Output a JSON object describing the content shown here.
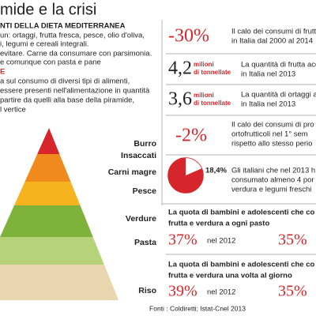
{
  "title": "mide e la crisi",
  "intro": {
    "heading": "NTI DELLA DIETA MEDITERRANEA",
    "lines": [
      "un: ortaggi, frutta fresca, pesce, olio d'oliva,",
      "i, legumi e cereali integrali.",
      "evitare. Carne da consumare con parsimonia.",
      "e comunque con pasta e pane"
    ]
  },
  "section": {
    "heading": "E",
    "lines": [
      "a sul consumo di diversi tipi di alimenti,",
      "essere presenti nell'alimentazione in quantità",
      "partire da quelli alla base della piramide,",
      "l vertice"
    ]
  },
  "pyramid": {
    "levels": [
      "Burro",
      "Insaccati",
      "Carni magre",
      "Pesce",
      "Verdure",
      "Pasta",
      "Riso"
    ]
  },
  "stats": [
    {
      "figure": "-30%",
      "lines": [
        "Il calo dei consumi di frutta",
        "in Italia dal 2000 al 2014"
      ]
    },
    {
      "figure": "4,2",
      "unit": [
        "milioni",
        "di tonnellate"
      ],
      "lines": [
        "La quantità di frutta acq",
        "in Italia nel 2013"
      ]
    },
    {
      "figure": "3,6",
      "unit": [
        "milioni",
        "di tonnellate"
      ],
      "lines": [
        "La quantità di ortaggi ac",
        "in Italia nel 2013"
      ]
    },
    {
      "figure": "-2%",
      "lines": [
        "Il calo dei consumi di pro",
        "ortofrutticoli nel 1° sem",
        "rispetto allo stesso perio"
      ]
    }
  ],
  "pie": {
    "label": "18,4%",
    "value": 18.4,
    "lines": [
      "Gli italiani che nel 2013 h",
      "consumato almeno 4 por",
      "verdura e legumi freschi"
    ]
  },
  "children": [
    {
      "lines": [
        "La quota di bambini e adolescenti che co",
        "frutta e verdura a ogni pasto"
      ],
      "value": "37%",
      "year": "nel 2012",
      "value2": "35%"
    },
    {
      "lines": [
        "La quota di bambini e adolescenti che co",
        "frutta e verdura una volta al giorno"
      ],
      "value": "39%",
      "year": "nel 2012",
      "value2": "35%"
    }
  ],
  "source": "Fonti : Coldiretti; Istat-Cnel 2013"
}
